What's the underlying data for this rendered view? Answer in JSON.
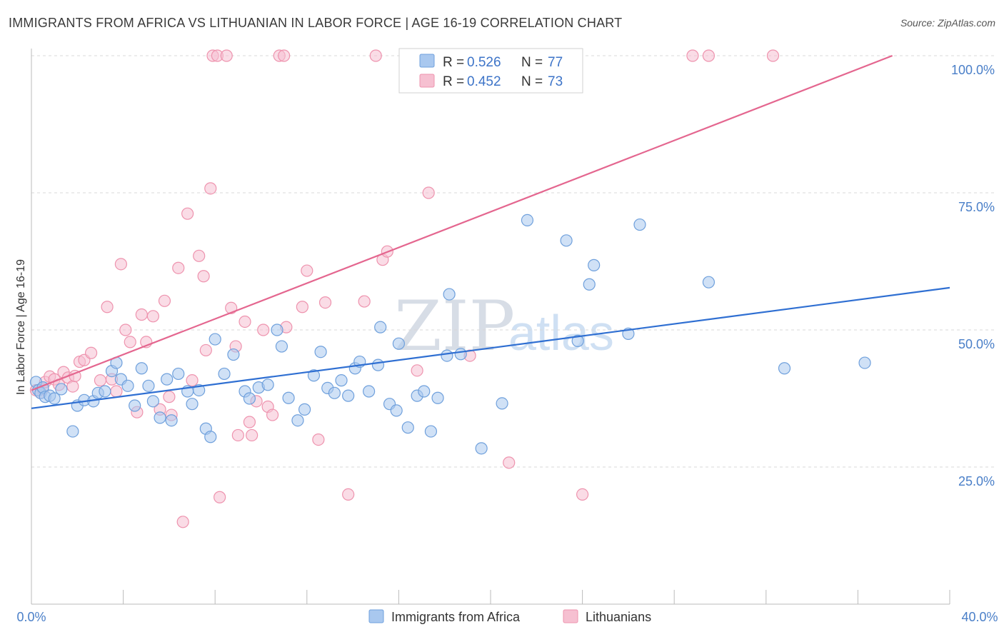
{
  "header": {
    "title": "IMMIGRANTS FROM AFRICA VS LITHUANIAN IN LABOR FORCE | AGE 16-19 CORRELATION CHART",
    "source": "Source: ZipAtlas.com"
  },
  "watermark": {
    "zip": "ZIP",
    "atlas": "atlas"
  },
  "legend": {
    "r_label": "R =",
    "n_label": "N =",
    "entries": [
      {
        "r": "0.526",
        "n": "77",
        "color": "#a9c8ef"
      },
      {
        "r": "0.452",
        "n": "73",
        "color": "#f6b8cc"
      }
    ]
  },
  "colors": {
    "blue_fill": "#a9c8ef",
    "blue_stroke": "#6fa0dc",
    "blue_line": "#2f6fd2",
    "pink_fill": "#f6c0d1",
    "pink_stroke": "#ee93ae",
    "pink_line": "#e4668f",
    "grid": "#d8d8d8",
    "tick_text": "#4a7fc8"
  },
  "chart_data": {
    "type": "scatter",
    "title": "IMMIGRANTS FROM AFRICA VS LITHUANIAN IN LABOR FORCE | AGE 16-19 CORRELATION CHART",
    "xlabel": "",
    "ylabel": "In Labor Force | Age 16-19",
    "xlim": [
      0,
      40
    ],
    "ylim": [
      0,
      102
    ],
    "x_tick_labels": [
      "0.0%",
      "40.0%"
    ],
    "y_ticks": [
      25,
      50,
      75,
      100
    ],
    "y_tick_labels": [
      "25.0%",
      "50.0%",
      "75.0%",
      "100.0%"
    ],
    "grid": true,
    "legend_placement": "top-center",
    "series": [
      {
        "name": "Immigrants from Africa",
        "R": 0.526,
        "N": 77,
        "trend": {
          "x": [
            0,
            40
          ],
          "y": [
            35.7,
            57.7
          ]
        },
        "points": [
          [
            0.2,
            40.5
          ],
          [
            0.3,
            39.0
          ],
          [
            0.4,
            38.5
          ],
          [
            0.5,
            39.5
          ],
          [
            0.6,
            37.8
          ],
          [
            0.8,
            38.0
          ],
          [
            1.0,
            37.5
          ],
          [
            1.3,
            39.2
          ],
          [
            1.8,
            31.5
          ],
          [
            2.0,
            36.2
          ],
          [
            2.3,
            37.2
          ],
          [
            2.7,
            37.0
          ],
          [
            2.9,
            38.5
          ],
          [
            3.2,
            38.8
          ],
          [
            3.5,
            42.5
          ],
          [
            3.7,
            44.0
          ],
          [
            3.9,
            41.0
          ],
          [
            4.2,
            39.8
          ],
          [
            4.5,
            36.2
          ],
          [
            4.8,
            43.0
          ],
          [
            5.1,
            39.8
          ],
          [
            5.3,
            37.0
          ],
          [
            5.6,
            34.0
          ],
          [
            5.9,
            41.0
          ],
          [
            6.1,
            33.5
          ],
          [
            6.4,
            42.0
          ],
          [
            6.8,
            38.8
          ],
          [
            7.0,
            36.5
          ],
          [
            7.3,
            39.0
          ],
          [
            7.6,
            32.0
          ],
          [
            7.8,
            30.5
          ],
          [
            8.0,
            48.3
          ],
          [
            8.4,
            42.0
          ],
          [
            8.8,
            45.5
          ],
          [
            9.3,
            38.8
          ],
          [
            9.5,
            37.5
          ],
          [
            9.9,
            39.5
          ],
          [
            10.3,
            40.0
          ],
          [
            10.7,
            50.0
          ],
          [
            10.9,
            47.0
          ],
          [
            11.2,
            37.6
          ],
          [
            11.6,
            33.5
          ],
          [
            11.9,
            35.5
          ],
          [
            12.3,
            41.7
          ],
          [
            12.6,
            46.0
          ],
          [
            12.9,
            39.4
          ],
          [
            13.2,
            38.5
          ],
          [
            13.5,
            40.8
          ],
          [
            13.8,
            38.0
          ],
          [
            14.1,
            43.0
          ],
          [
            14.3,
            44.2
          ],
          [
            14.7,
            38.8
          ],
          [
            15.1,
            43.6
          ],
          [
            15.2,
            50.5
          ],
          [
            15.6,
            36.5
          ],
          [
            15.9,
            35.3
          ],
          [
            16.0,
            47.5
          ],
          [
            16.4,
            32.2
          ],
          [
            16.8,
            38.0
          ],
          [
            17.1,
            38.8
          ],
          [
            17.4,
            31.5
          ],
          [
            17.7,
            37.6
          ],
          [
            18.1,
            45.3
          ],
          [
            18.2,
            56.5
          ],
          [
            18.7,
            45.6
          ],
          [
            19.6,
            28.4
          ],
          [
            20.5,
            36.6
          ],
          [
            21.6,
            70.0
          ],
          [
            23.3,
            66.3
          ],
          [
            23.8,
            48.0
          ],
          [
            24.3,
            58.3
          ],
          [
            24.5,
            61.8
          ],
          [
            26.0,
            49.3
          ],
          [
            26.5,
            69.2
          ],
          [
            29.5,
            58.7
          ],
          [
            32.8,
            43.0
          ],
          [
            36.3,
            44.0
          ]
        ]
      },
      {
        "name": "Lithuanians",
        "R": 0.452,
        "N": 73,
        "trend": {
          "x": [
            0,
            37.5
          ],
          "y": [
            39.0,
            100.0
          ]
        },
        "points": [
          [
            0.2,
            39.0
          ],
          [
            0.4,
            38.5
          ],
          [
            0.5,
            39.2
          ],
          [
            0.6,
            40.5
          ],
          [
            0.8,
            41.5
          ],
          [
            1.0,
            41.0
          ],
          [
            1.2,
            40.0
          ],
          [
            1.4,
            42.3
          ],
          [
            1.6,
            41.3
          ],
          [
            1.8,
            39.7
          ],
          [
            1.9,
            41.6
          ],
          [
            2.1,
            44.2
          ],
          [
            2.3,
            44.5
          ],
          [
            2.6,
            45.8
          ],
          [
            3.0,
            40.8
          ],
          [
            3.3,
            54.2
          ],
          [
            3.5,
            41.0
          ],
          [
            3.7,
            38.8
          ],
          [
            3.9,
            62.0
          ],
          [
            4.1,
            50.0
          ],
          [
            4.3,
            47.8
          ],
          [
            4.6,
            35.0
          ],
          [
            4.8,
            52.8
          ],
          [
            5.0,
            47.8
          ],
          [
            5.3,
            52.5
          ],
          [
            5.6,
            35.5
          ],
          [
            5.8,
            55.3
          ],
          [
            6.0,
            37.8
          ],
          [
            6.1,
            34.5
          ],
          [
            6.4,
            61.3
          ],
          [
            6.6,
            15.0
          ],
          [
            6.8,
            71.2
          ],
          [
            7.0,
            40.8
          ],
          [
            7.3,
            63.5
          ],
          [
            7.5,
            59.8
          ],
          [
            7.6,
            46.3
          ],
          [
            7.8,
            75.8
          ],
          [
            7.9,
            100.0
          ],
          [
            8.1,
            100.0
          ],
          [
            8.2,
            19.5
          ],
          [
            8.5,
            100.0
          ],
          [
            8.7,
            54.0
          ],
          [
            8.9,
            47.0
          ],
          [
            9.0,
            30.8
          ],
          [
            9.3,
            51.5
          ],
          [
            9.5,
            33.2
          ],
          [
            9.6,
            30.8
          ],
          [
            9.8,
            37.0
          ],
          [
            10.1,
            50.0
          ],
          [
            10.3,
            36.0
          ],
          [
            10.5,
            34.5
          ],
          [
            10.8,
            100.0
          ],
          [
            11.0,
            100.0
          ],
          [
            11.1,
            50.5
          ],
          [
            11.8,
            54.2
          ],
          [
            12.0,
            60.8
          ],
          [
            12.5,
            30.0
          ],
          [
            12.8,
            55.0
          ],
          [
            13.8,
            20.0
          ],
          [
            14.5,
            55.2
          ],
          [
            15.0,
            100.0
          ],
          [
            15.3,
            62.8
          ],
          [
            15.5,
            64.3
          ],
          [
            16.8,
            42.6
          ],
          [
            17.3,
            75.0
          ],
          [
            19.1,
            45.3
          ],
          [
            20.8,
            25.8
          ],
          [
            22.3,
            100.0
          ],
          [
            22.8,
            100.0
          ],
          [
            24.0,
            20.0
          ],
          [
            28.8,
            100.0
          ],
          [
            29.5,
            100.0
          ],
          [
            32.3,
            100.0
          ]
        ]
      }
    ]
  }
}
